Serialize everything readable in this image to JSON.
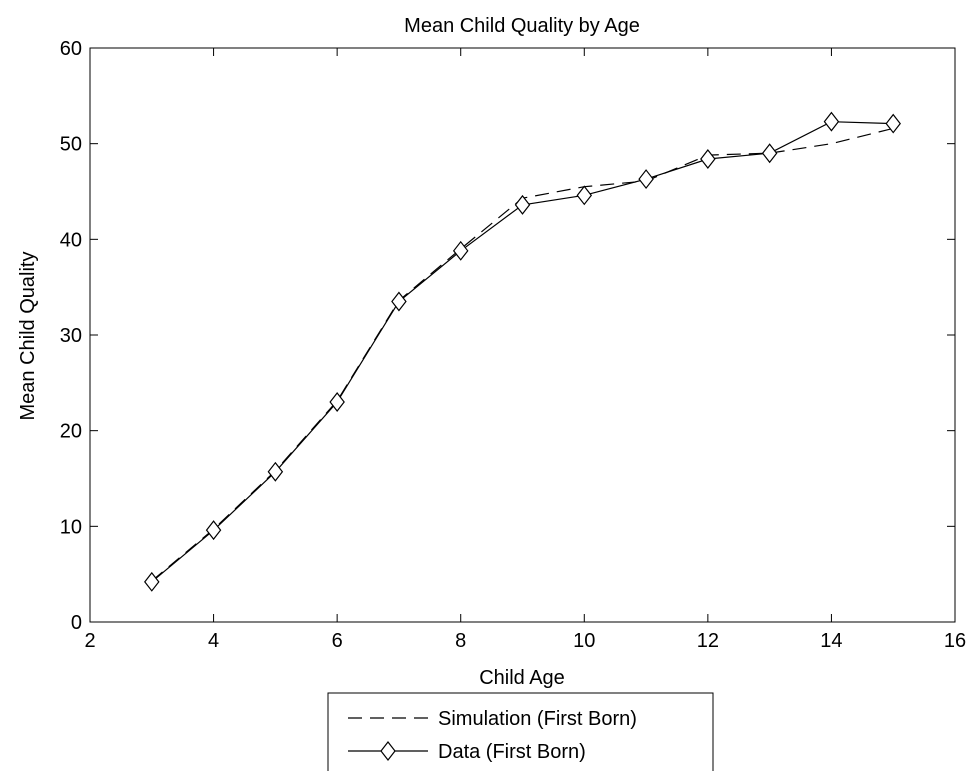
{
  "chart_data": {
    "type": "line",
    "title": "Mean Child Quality by Age",
    "xlabel": "Child Age",
    "ylabel": "Mean Child Quality",
    "xlim": [
      2,
      16
    ],
    "ylim": [
      0,
      60
    ],
    "xticks": [
      2,
      4,
      6,
      8,
      10,
      12,
      14,
      16
    ],
    "yticks": [
      0,
      10,
      20,
      30,
      40,
      50,
      60
    ],
    "grid": false,
    "legend_position": "bottom-center outside",
    "series": [
      {
        "name": "Simulation (First Born)",
        "style": "dashed",
        "marker": "none",
        "color": "#000000",
        "x": [
          3,
          4,
          5,
          6,
          7,
          8,
          9,
          10,
          11,
          12,
          13,
          14,
          15
        ],
        "y": [
          4.3,
          9.7,
          15.8,
          23.1,
          33.6,
          39.0,
          44.3,
          45.5,
          46.1,
          48.8,
          49.0,
          50.0,
          51.6
        ]
      },
      {
        "name": "Data (First Born)",
        "style": "solid",
        "marker": "diamond",
        "color": "#000000",
        "x": [
          3,
          4,
          5,
          6,
          7,
          8,
          9,
          10,
          11,
          12,
          13,
          14,
          15
        ],
        "y": [
          4.2,
          9.6,
          15.7,
          23.0,
          33.5,
          38.8,
          43.6,
          44.6,
          46.3,
          48.4,
          49.0,
          52.3,
          52.1
        ]
      }
    ]
  }
}
